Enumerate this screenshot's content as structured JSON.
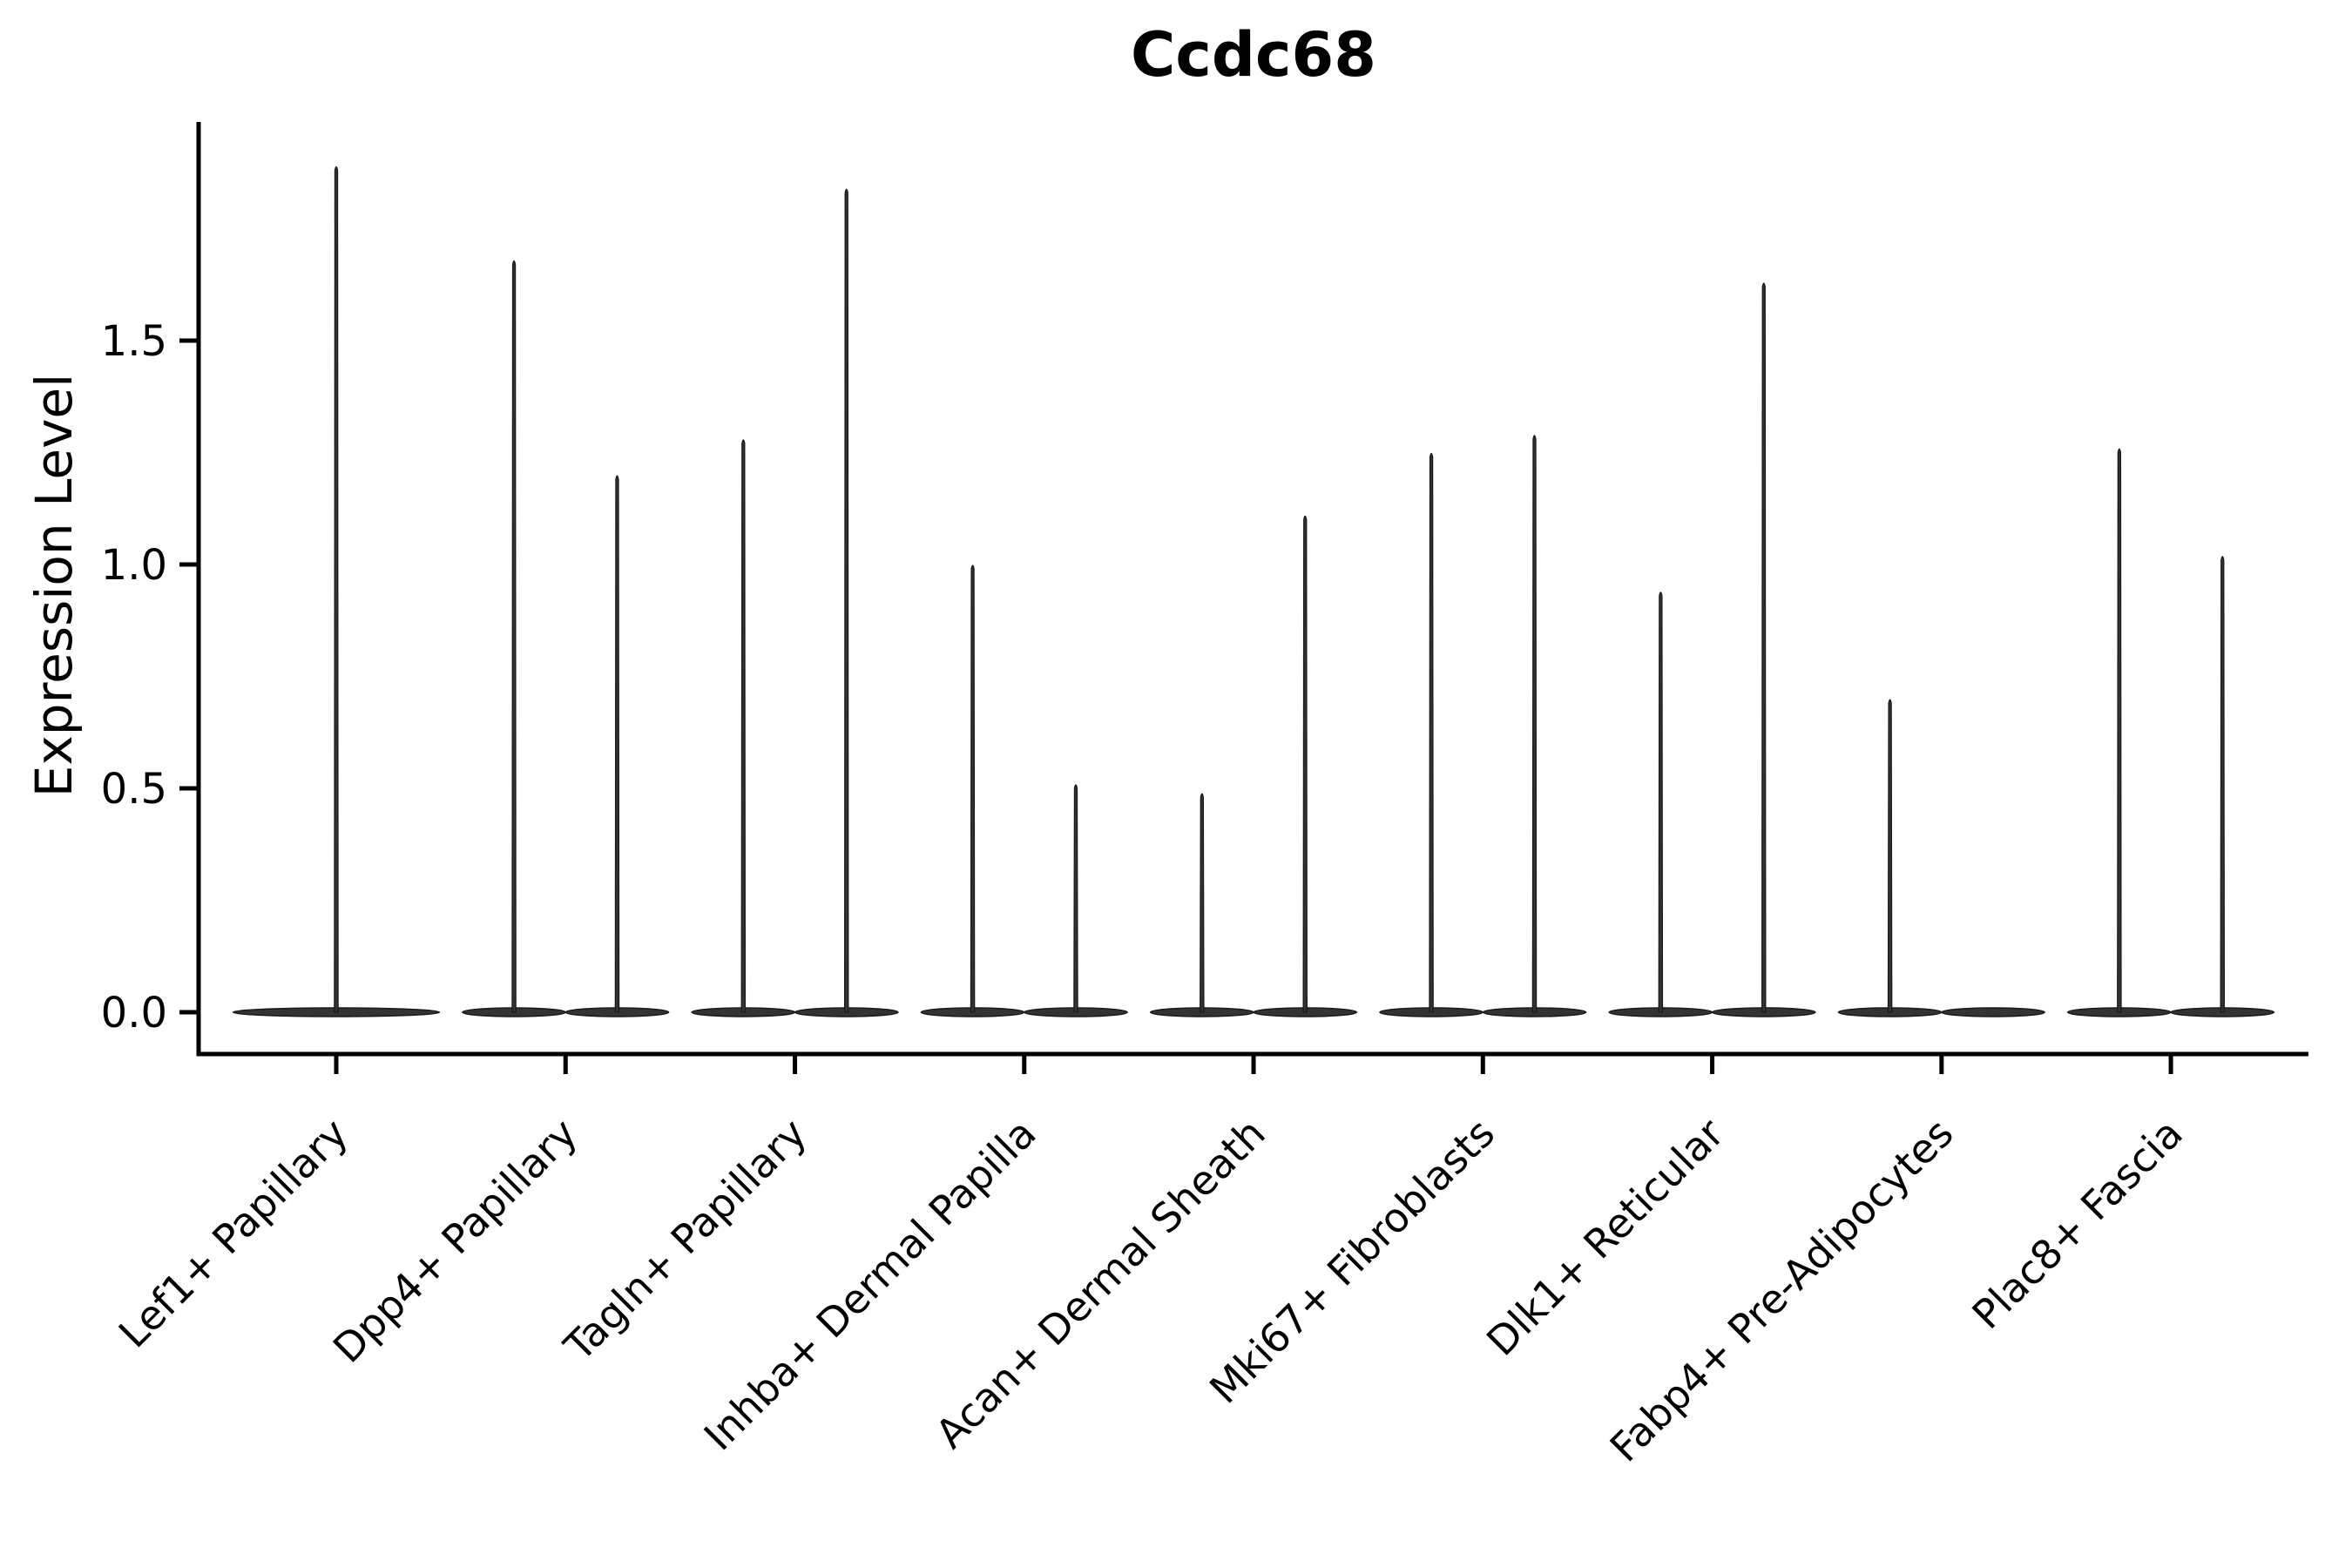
{
  "chart_data": {
    "type": "violin",
    "title": "Ccdc68",
    "ylabel": "Expression Level",
    "xlabel": "",
    "grid": false,
    "legend": "none",
    "ylim": [
      -0.09,
      2.08
    ],
    "yticks": [
      {
        "label": "0.0",
        "value": 0.0
      },
      {
        "label": "0.5",
        "value": 0.5
      },
      {
        "label": "1.0",
        "value": 1.0
      },
      {
        "label": "1.5",
        "value": 1.5
      }
    ],
    "colors": {
      "violin_fill": "#333333",
      "violin_edge": "#1a1a1a",
      "axis": "#000000",
      "text": "#000000",
      "background": "#ffffff"
    },
    "groups": [
      {
        "label": "Lef1+ Papillary",
        "violin_max": [
          1.89
        ]
      },
      {
        "label": "Dpp4+ Papillary",
        "violin_max": [
          1.68,
          1.2
        ]
      },
      {
        "label": "Tagln+ Papillary",
        "violin_max": [
          1.28,
          1.84
        ]
      },
      {
        "label": "Inhba+ Dermal Papilla",
        "violin_max": [
          1.0,
          0.51
        ]
      },
      {
        "label": "Acan+ Dermal Sheath",
        "violin_max": [
          0.49,
          1.11
        ]
      },
      {
        "label": "Mki67+ Fibroblasts",
        "violin_max": [
          1.25,
          1.29
        ]
      },
      {
        "label": "Dlk1+ Reticular",
        "violin_max": [
          0.94,
          1.63
        ]
      },
      {
        "label": "Fabp4+ Pre-Adipocytes",
        "violin_max": [
          0.7,
          0.0
        ]
      },
      {
        "label": "Plac8+ Fascia",
        "violin_max": [
          1.26,
          1.02
        ]
      }
    ]
  }
}
